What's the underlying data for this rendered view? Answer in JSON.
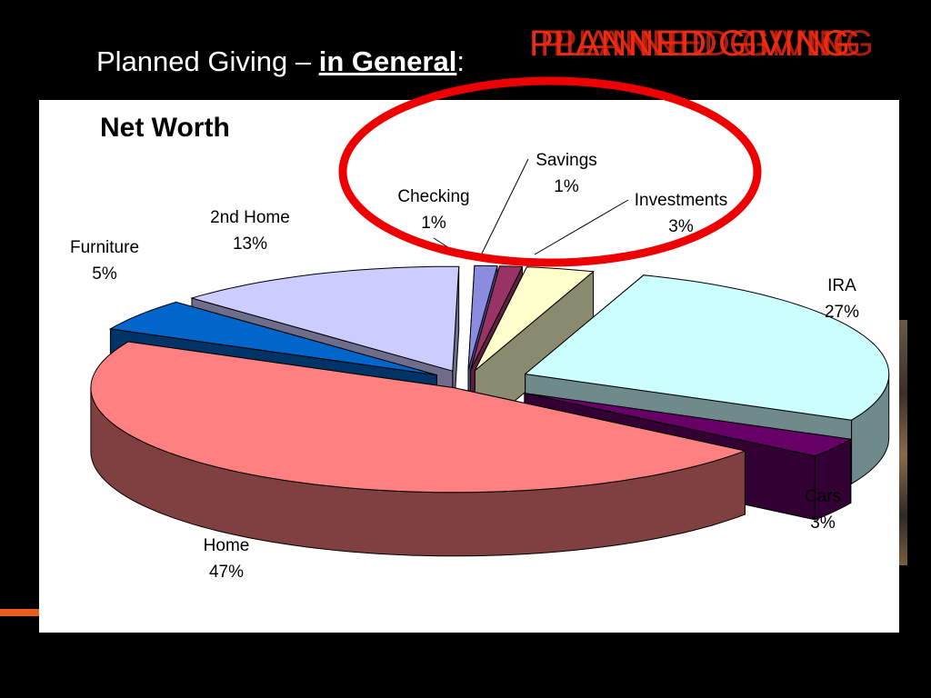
{
  "slide": {
    "title_prefix": "Planned Giving – ",
    "title_emphasis": "in General",
    "title_suffix": ":",
    "header_word": "PLANNED GIVING",
    "accent_color": "#ee2a12",
    "highlight_color": "#ee0000"
  },
  "chart_data": {
    "type": "pie",
    "title": "Net Worth",
    "style": "3d-exploded",
    "slices": [
      {
        "name": "Checking",
        "value": 1,
        "label": "1%",
        "top_color": "#8b8be0",
        "side_color": "#4a4a8c"
      },
      {
        "name": "Savings",
        "value": 1,
        "label": "1%",
        "top_color": "#993366",
        "side_color": "#5c1f3e"
      },
      {
        "name": "Investments",
        "value": 3,
        "label": "3%",
        "top_color": "#ffffcc",
        "side_color": "#8a8a6e"
      },
      {
        "name": "IRA",
        "value": 27,
        "label": "27%",
        "top_color": "#ccffff",
        "side_color": "#6e8a8a"
      },
      {
        "name": "Cars",
        "value": 3,
        "label": "3%",
        "top_color": "#660066",
        "side_color": "#330033"
      },
      {
        "name": "Home",
        "value": 47,
        "label": "47%",
        "top_color": "#ff8080",
        "side_color": "#804040"
      },
      {
        "name": "Furniture",
        "value": 5,
        "label": "5%",
        "top_color": "#0066cc",
        "side_color": "#003366"
      },
      {
        "name": "2nd Home",
        "value": 13,
        "label": "13%",
        "top_color": "#ccccff",
        "side_color": "#6e6e8a"
      }
    ]
  }
}
